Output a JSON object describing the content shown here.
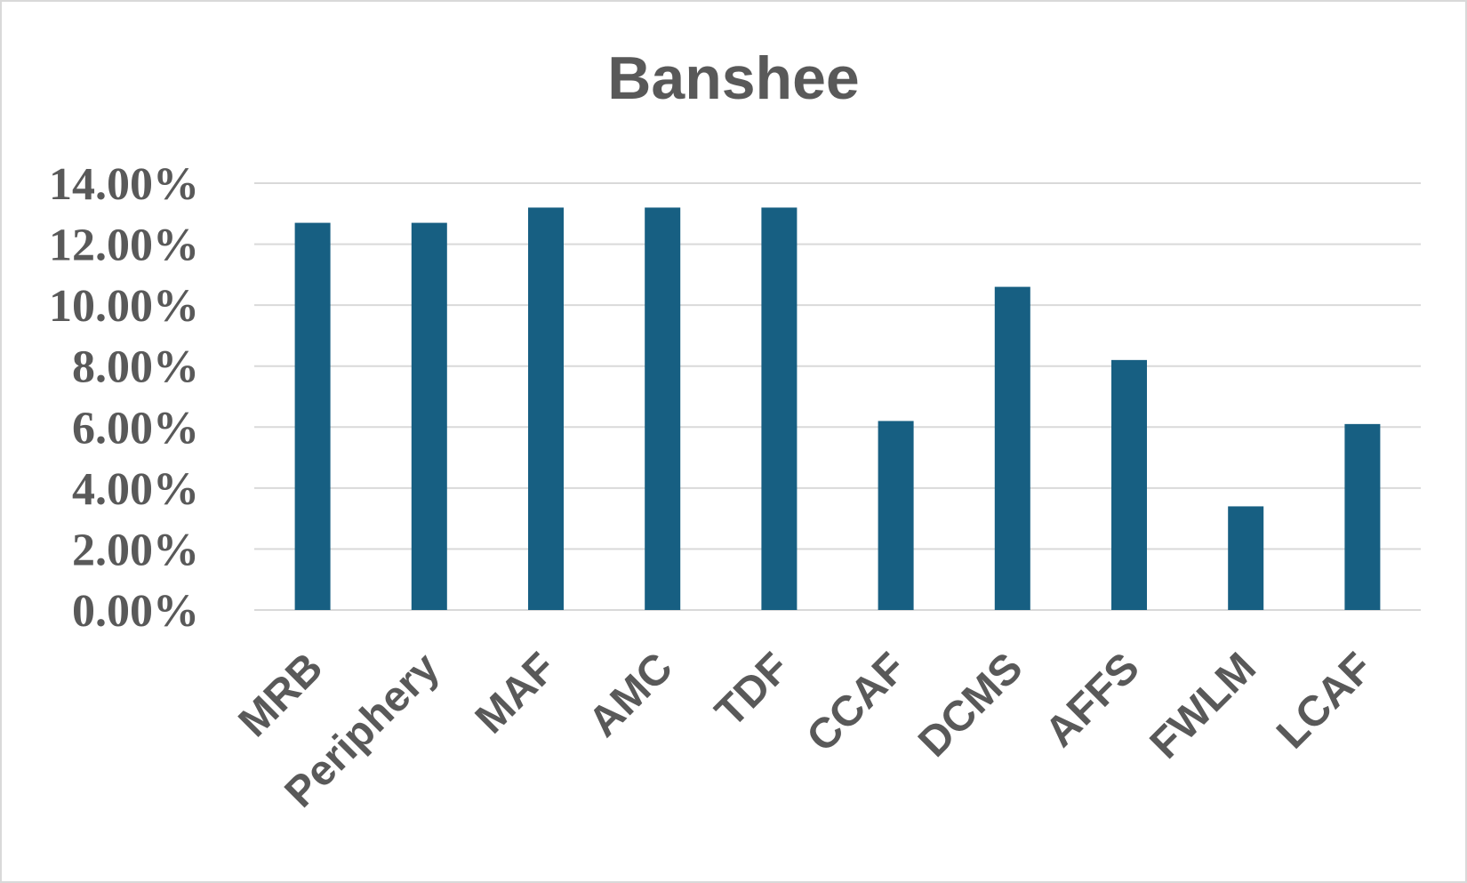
{
  "chart_data": {
    "type": "bar",
    "title": "Banshee",
    "xlabel": "",
    "ylabel": "",
    "categories": [
      "MRB",
      "Periphery",
      "MAF",
      "AMC",
      "TDF",
      "CCAF",
      "DCMS",
      "AFFS",
      "FWLM",
      "LCAF"
    ],
    "values": [
      12.7,
      12.7,
      13.2,
      13.2,
      13.2,
      6.2,
      10.6,
      8.2,
      3.4,
      6.1
    ],
    "ylim": [
      0,
      14
    ],
    "y_ticks": [
      "0.00%",
      "2.00%",
      "4.00%",
      "6.00%",
      "8.00%",
      "10.00%",
      "12.00%",
      "14.00%"
    ],
    "y_tick_values": [
      0,
      2,
      4,
      6,
      8,
      10,
      12,
      14
    ],
    "grid": true,
    "legend": "none",
    "colors": {
      "bar": "#175f82",
      "grid": "#d9d9d9",
      "text": "#595959"
    }
  }
}
